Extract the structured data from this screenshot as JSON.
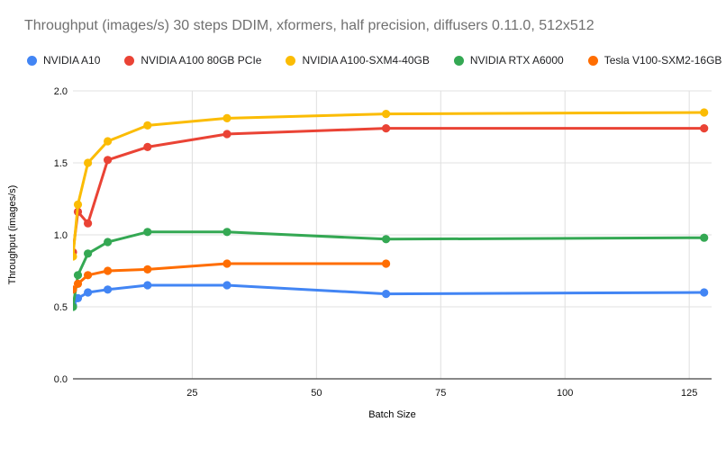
{
  "title": "Throughput (images/s) 30 steps DDIM, xformers, half precision, diffusers 0.11.0, 512x512",
  "colors": {
    "background": "#ffffff",
    "title_text": "#707070",
    "grid": "#e0e0e0",
    "axis_line": "#424242",
    "tick_text": "#111111",
    "legend_text": "#202124"
  },
  "chart_data": {
    "type": "line",
    "title": "Throughput (images/s) 30 steps DDIM, xformers, half precision, diffusers 0.11.0, 512x512",
    "xlabel": "Batch Size",
    "ylabel": "Throughput (images/s)",
    "x": [
      1,
      2,
      4,
      8,
      16,
      32,
      64,
      128
    ],
    "x_ticks": [
      25,
      50,
      75,
      100,
      125
    ],
    "y_ticks": [
      0.0,
      0.5,
      1.0,
      1.5,
      2.0
    ],
    "xlim": [
      1,
      129.5
    ],
    "ylim": [
      0.0,
      2.0
    ],
    "grid": true,
    "legend_position": "top",
    "marker": "circle",
    "series": [
      {
        "name": "NVIDIA A10",
        "color": "#4285F4",
        "values": [
          0.51,
          0.56,
          0.6,
          0.62,
          0.65,
          0.65,
          0.59,
          0.6
        ]
      },
      {
        "name": "NVIDIA A100 80GB PCIe",
        "color": "#EA4335",
        "values": [
          0.88,
          1.16,
          1.08,
          1.52,
          1.61,
          1.7,
          1.74,
          1.74
        ]
      },
      {
        "name": "NVIDIA A100-SXM4-40GB",
        "color": "#FBBC04",
        "values": [
          0.85,
          1.21,
          1.5,
          1.65,
          1.76,
          1.81,
          1.84,
          1.85
        ]
      },
      {
        "name": "NVIDIA RTX A6000",
        "color": "#34A853",
        "values": [
          0.5,
          0.72,
          0.87,
          0.95,
          1.02,
          1.02,
          0.97,
          0.98
        ]
      },
      {
        "name": "Tesla V100-SXM2-16GB",
        "color": "#FF6D01",
        "values": [
          0.62,
          0.66,
          0.72,
          0.75,
          0.76,
          0.8,
          0.8,
          null
        ]
      }
    ]
  }
}
